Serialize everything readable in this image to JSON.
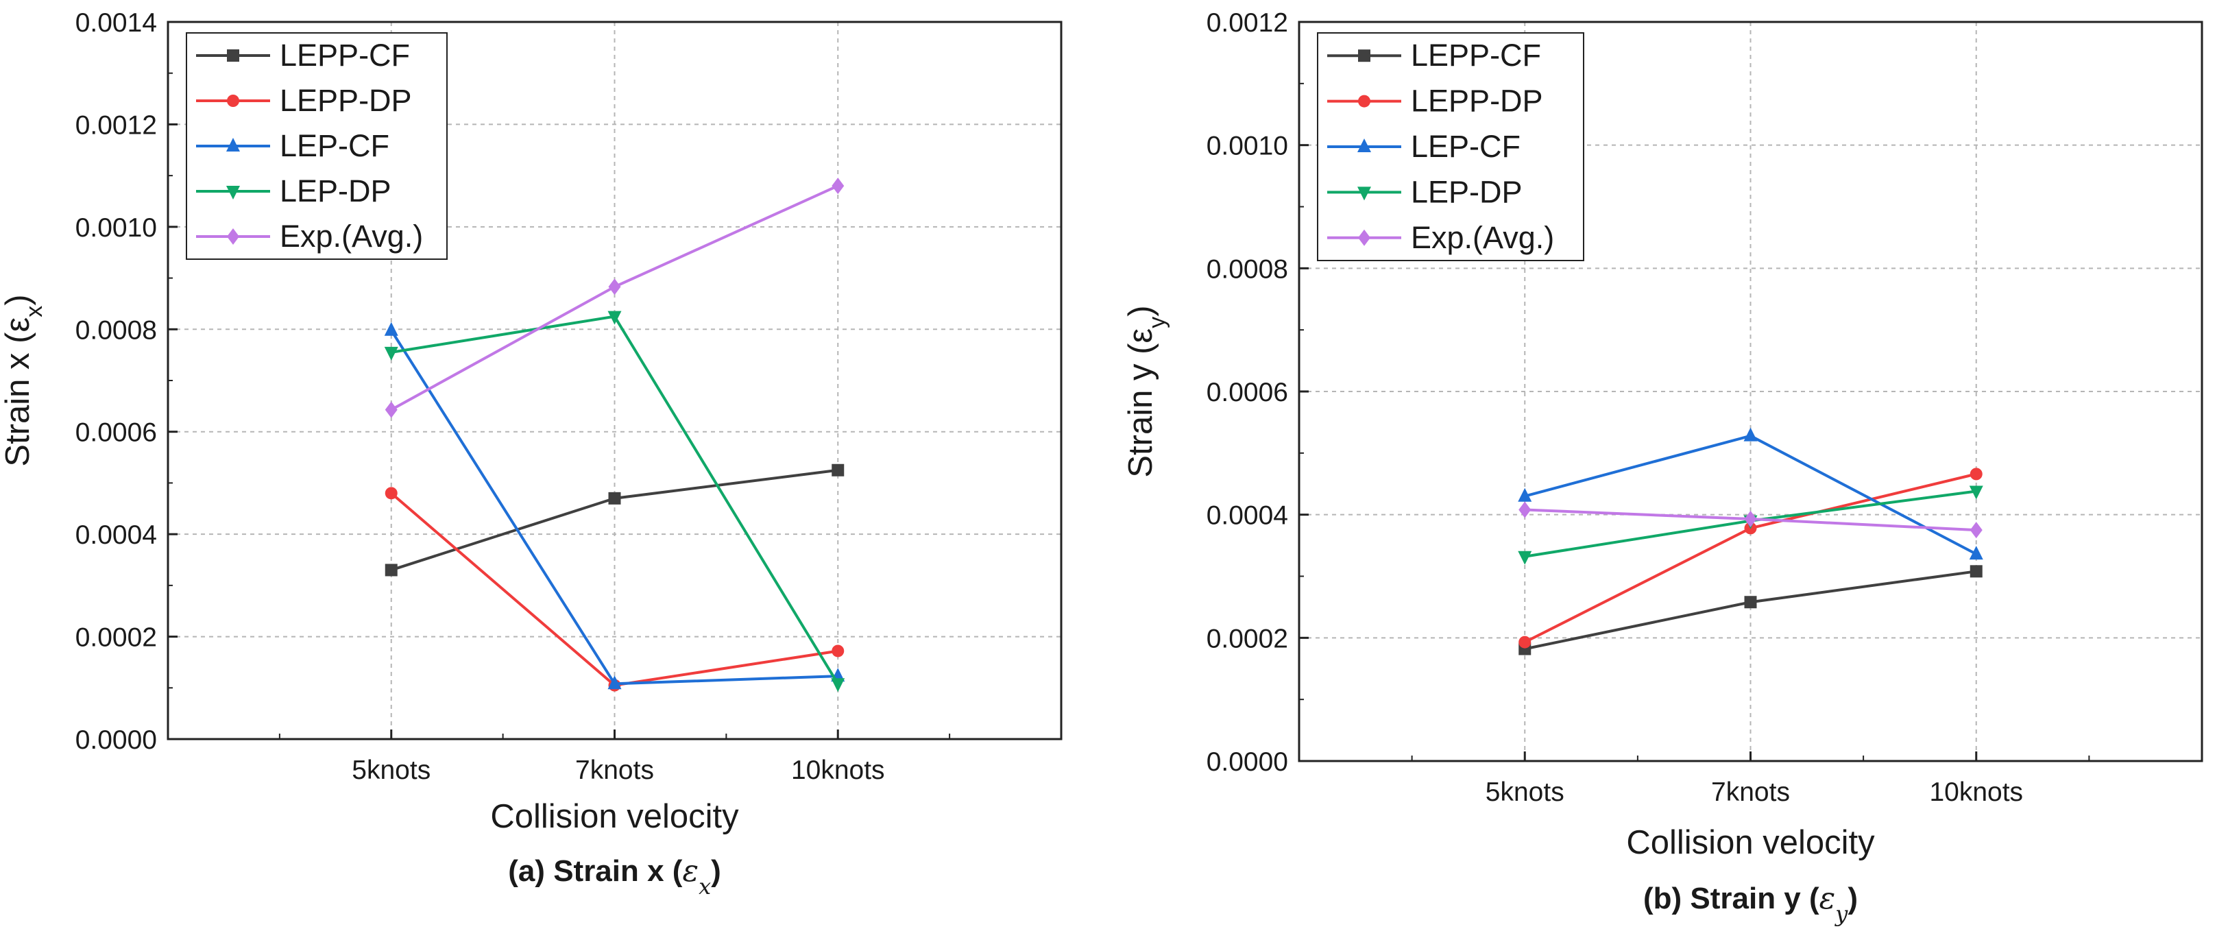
{
  "chart_data": [
    {
      "type": "line",
      "ylabel": "Strain x (ε",
      "ylabel_sub": "x",
      "xlabel": "Collision velocity",
      "caption": "(a) Strain x (",
      "caption_symbol": "ε",
      "caption_sub": "x",
      "caption_end": ")",
      "categories": [
        "5knots",
        "7knots",
        "10knots"
      ],
      "ylim": [
        0,
        0.0014
      ],
      "yticks": [
        "0.0000",
        "0.0002",
        "0.0004",
        "0.0006",
        "0.0008",
        "0.0010",
        "0.0012",
        "0.0014"
      ],
      "legend_position": "top-left",
      "grid": true,
      "series": [
        {
          "name": "LEPP-CF",
          "color": "#404040",
          "marker": "square",
          "values": [
            0.00033,
            0.00047,
            0.000525
          ]
        },
        {
          "name": "LEPP-DP",
          "color": "#f03c3c",
          "marker": "circle",
          "values": [
            0.00048,
            0.000105,
            0.000172
          ]
        },
        {
          "name": "LEP-CF",
          "color": "#1f6fd6",
          "marker": "triangle-up",
          "values": [
            0.000798,
            0.000108,
            0.000123
          ]
        },
        {
          "name": "LEP-DP",
          "color": "#10a868",
          "marker": "triangle-down",
          "values": [
            0.000755,
            0.000825,
            0.000108
          ]
        },
        {
          "name": "Exp.(Avg.)",
          "color": "#c178e6",
          "marker": "diamond",
          "values": [
            0.000643,
            0.000883,
            0.00108
          ]
        }
      ]
    },
    {
      "type": "line",
      "ylabel": "Strain y (ε",
      "ylabel_sub": "y",
      "xlabel": "Collision velocity",
      "caption": "(b) Strain y (",
      "caption_symbol": "ε",
      "caption_sub": "y",
      "caption_end": ")",
      "categories": [
        "5knots",
        "7knots",
        "10knots"
      ],
      "ylim": [
        0,
        0.0012
      ],
      "yticks": [
        "0.0000",
        "0.0002",
        "0.0004",
        "0.0006",
        "0.0008",
        "0.0010",
        "0.0012"
      ],
      "legend_position": "top-left",
      "grid": true,
      "series": [
        {
          "name": "LEPP-CF",
          "color": "#404040",
          "marker": "square",
          "values": [
            0.000182,
            0.000258,
            0.000308
          ]
        },
        {
          "name": "LEPP-DP",
          "color": "#f03c3c",
          "marker": "circle",
          "values": [
            0.000193,
            0.000378,
            0.000466
          ]
        },
        {
          "name": "LEP-CF",
          "color": "#1f6fd6",
          "marker": "triangle-up",
          "values": [
            0.00043,
            0.000528,
            0.000336
          ]
        },
        {
          "name": "LEP-DP",
          "color": "#10a868",
          "marker": "triangle-down",
          "values": [
            0.000332,
            0.00039,
            0.000438
          ]
        },
        {
          "name": "Exp.(Avg.)",
          "color": "#c178e6",
          "marker": "diamond",
          "values": [
            0.000408,
            0.000393,
            0.000375
          ]
        }
      ]
    }
  ]
}
